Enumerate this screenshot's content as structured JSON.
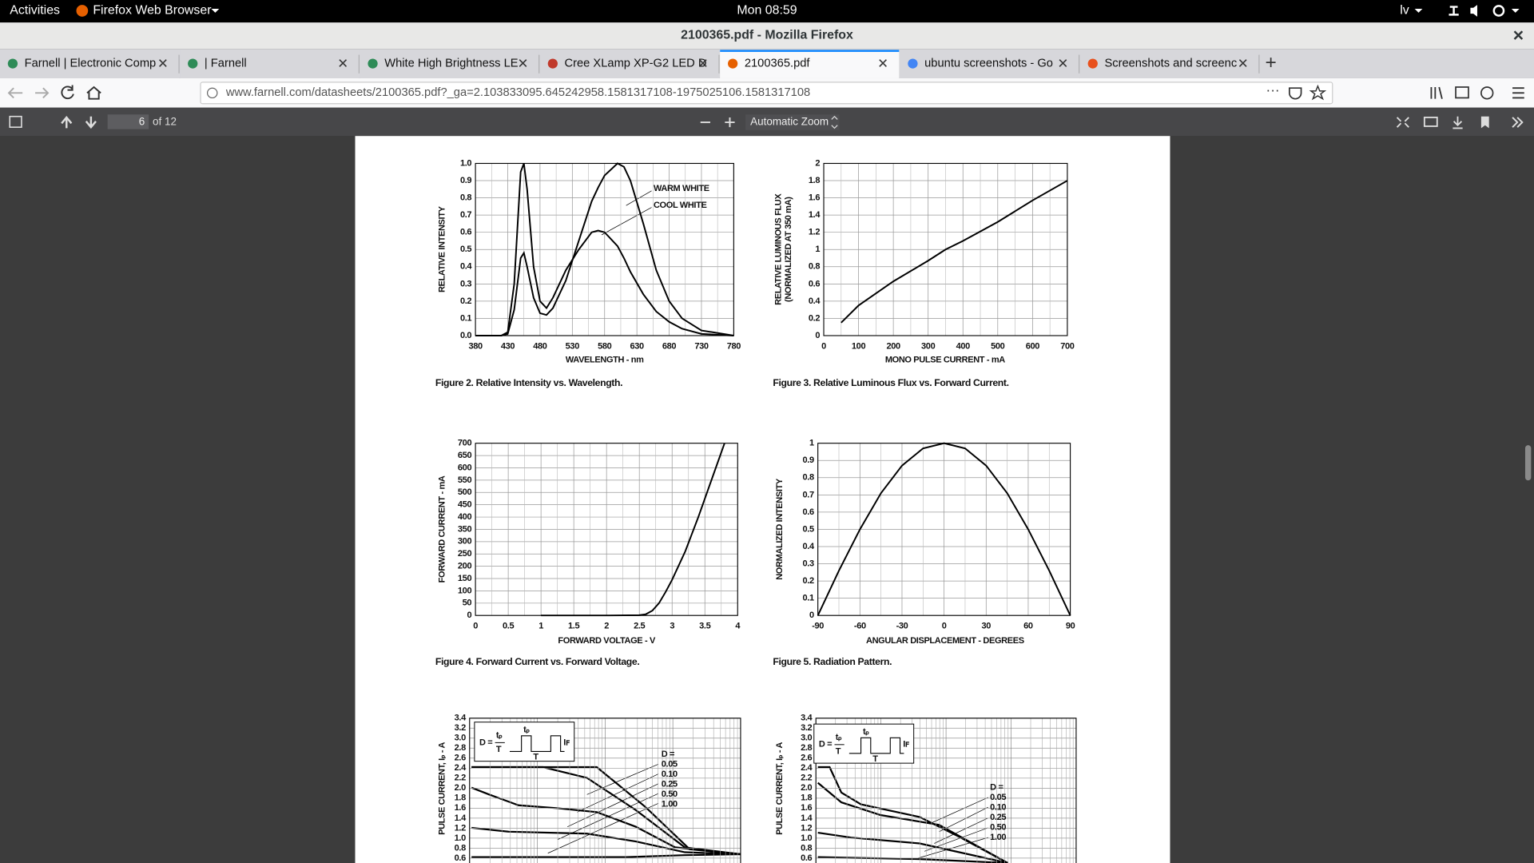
{
  "top_bar": {
    "activities": "Activities",
    "app_menu": "Firefox Web Browser",
    "clock": "Mon 08:59",
    "input_source": "lv"
  },
  "window_title": "2100365.pdf - Mozilla Firefox",
  "tabs": [
    "Farnell | Electronic Comp",
    "| Farnell",
    "White High Brightness LE",
    "Cree XLamp XP-G2 LED D",
    "2100365.pdf",
    "ubuntu screenshots - Go",
    "Screenshots and screenc"
  ],
  "url": "www.farnell.com/datasheets/2100365.pdf?_ga=2.103833095.645242958.1581317108-1975025106.1581317108",
  "pdf_toolbar": {
    "page": "6",
    "page_count": "of 12",
    "zoom": "Automatic Zoom"
  },
  "pdf": {
    "figures": [
      {
        "type": "line",
        "caption": "Figure 2. Relative Intensity vs. Wavelength.",
        "xlabel": "WAVELENGTH - nm",
        "ylabel": "RELATIVE INTENSITY",
        "xlim": [
          380,
          780
        ],
        "xticks": [
          380,
          430,
          480,
          530,
          580,
          630,
          680,
          730,
          780
        ],
        "ylim": [
          0,
          1
        ],
        "yticks": [
          {
            "value": 0,
            "label": "0.0"
          },
          0.1,
          0.2,
          0.3,
          0.4,
          0.5,
          0.6,
          0.7,
          0.8,
          0.9,
          {
            "value": 1,
            "label": "1.0"
          }
        ],
        "x": [
          380,
          420,
          430,
          440,
          450,
          455,
          460,
          470,
          480,
          490,
          500,
          520,
          540,
          560,
          570,
          580,
          600,
          610,
          620,
          640,
          660,
          680,
          700,
          730,
          780
        ],
        "series": [
          {
            "name": "WARM WHITE",
            "color": "#000000",
            "values": [
              0,
              0,
              0.01,
              0.15,
              0.45,
              0.48,
              0.4,
              0.22,
              0.13,
              0.12,
              0.16,
              0.32,
              0.55,
              0.78,
              0.86,
              0.93,
              1,
              0.98,
              0.9,
              0.65,
              0.38,
              0.2,
              0.1,
              0.03,
              0
            ]
          },
          {
            "name": "COOL WHITE",
            "color": "#000000",
            "values": [
              0,
              0,
              0.02,
              0.3,
              0.95,
              1,
              0.85,
              0.4,
              0.2,
              0.16,
              0.22,
              0.38,
              0.5,
              0.6,
              0.61,
              0.6,
              0.52,
              0.45,
              0.37,
              0.24,
              0.14,
              0.08,
              0.04,
              0.01,
              0
            ]
          }
        ]
      },
      {
        "type": "line",
        "caption": "Figure 3. Relative Luminous Flux vs. Forward Current.",
        "xlabel": "MONO PULSE CURRENT - mA",
        "ylabel": [
          "RELATIVE LUMINOUS FLUX",
          "(NORMALIZED AT 350 mA)"
        ],
        "xlim": [
          0,
          700
        ],
        "xticks": [
          0,
          100,
          200,
          300,
          400,
          500,
          600,
          700
        ],
        "ylim": [
          0,
          2
        ],
        "yticks": [
          0,
          0.2,
          0.4,
          0.6,
          0.8,
          1,
          1.2,
          1.4,
          1.6,
          1.8,
          2
        ],
        "x": [
          50,
          100,
          200,
          300,
          350,
          400,
          500,
          600,
          700
        ],
        "series": [
          {
            "color": "#000000",
            "values": [
              0.15,
              0.35,
              0.63,
              0.87,
              1,
              1.1,
              1.32,
              1.57,
              1.8
            ]
          }
        ]
      },
      {
        "type": "line",
        "caption": "Figure 4. Forward Current vs. Forward Voltage.",
        "xlabel": "FORWARD VOLTAGE - V",
        "ylabel": "FORWARD CURRENT - mA",
        "xlim": [
          0,
          4
        ],
        "xticks": [
          0,
          0.5,
          1,
          1.5,
          2,
          2.5,
          3,
          3.5,
          4
        ],
        "ylim": [
          0,
          700
        ],
        "yticks": [
          0,
          50,
          100,
          150,
          200,
          250,
          300,
          350,
          400,
          450,
          500,
          550,
          600,
          650,
          700
        ],
        "x": [
          1,
          2,
          2.5,
          2.6,
          2.7,
          2.8,
          2.9,
          3,
          3.2,
          3.4,
          3.6,
          3.8
        ],
        "series": [
          {
            "color": "#000000",
            "values": [
              0,
              0,
              1,
              5,
              20,
              50,
              95,
              145,
              260,
              400,
              550,
              700
            ]
          }
        ]
      },
      {
        "type": "line",
        "caption": "Figure 5. Radiation Pattern.",
        "xlabel": "ANGULAR DISPLACEMENT - DEGREES",
        "ylabel": "NORMALIZED INTENSITY",
        "xlim": [
          -90,
          90
        ],
        "xticks": [
          -90,
          -60,
          -30,
          0,
          30,
          60,
          90
        ],
        "ylim": [
          0,
          1
        ],
        "yticks": [
          0,
          0.1,
          0.2,
          0.3,
          0.4,
          0.5,
          0.6,
          0.7,
          0.8,
          0.9,
          1
        ],
        "x": [
          -90,
          -75,
          -60,
          -45,
          -30,
          -15,
          0,
          15,
          30,
          45,
          60,
          75,
          90
        ],
        "series": [
          {
            "color": "#000000",
            "values": [
              0,
              0.26,
              0.5,
              0.71,
              0.87,
              0.97,
              1,
              0.97,
              0.87,
              0.71,
              0.5,
              0.26,
              0
            ]
          }
        ]
      },
      {
        "type": "line",
        "ylabel": "PULSE CURRENT, Iₚ - A",
        "ylim": [
          0.6,
          3.4
        ],
        "yticks": [
          0.6,
          0.8,
          {
            "value": 1,
            "label": "1.0"
          },
          1.2,
          1.4,
          1.6,
          1.8,
          {
            "value": 2,
            "label": "2.0"
          },
          2.2,
          2.4,
          2.6,
          2.8,
          {
            "value": 3,
            "label": "3.0"
          },
          3.2,
          3.4
        ],
        "inset": {
          "d": "D =",
          "num": "tₚ",
          "den": "T",
          "pulse": "tₚ",
          "period": "T",
          "level": "Iꜰ"
        },
        "legend_title": "D =",
        "legend": [
          "0.05",
          "0.10",
          "0.25",
          "0.50",
          "1.00"
        ]
      },
      {
        "type": "line",
        "ylabel": "PULSE CURRENT, Iₚ - A",
        "ylim": [
          0.6,
          3.4
        ],
        "yticks": [
          0.6,
          0.8,
          {
            "value": 1,
            "label": "1.0"
          },
          1.2,
          1.4,
          1.6,
          1.8,
          {
            "value": 2,
            "label": "2.0"
          },
          2.2,
          2.4,
          2.6,
          2.8,
          {
            "value": 3,
            "label": "3.0"
          },
          3.2,
          3.4
        ],
        "inset": {
          "d": "D =",
          "num": "tₚ",
          "den": "T",
          "pulse": "tₚ",
          "period": "T",
          "level": "Iꜰ"
        },
        "legend_title": "D =",
        "legend": [
          "0.05",
          "0.10",
          "0.25",
          "0.50",
          "1.00"
        ]
      }
    ]
  }
}
